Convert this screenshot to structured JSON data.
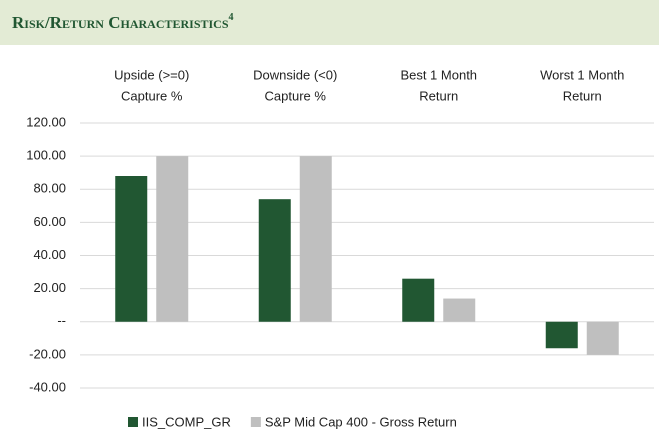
{
  "chart_data": {
    "type": "bar",
    "title": "Risk/Return Characteristics",
    "title_note": "4",
    "categories": [
      [
        "Upside (>=0)",
        "Capture %"
      ],
      [
        "Downside (<0)",
        "Capture %"
      ],
      [
        "Best 1 Month",
        "Return"
      ],
      [
        "Worst 1 Month",
        "Return"
      ]
    ],
    "series": [
      {
        "name": "IIS_COMP_GR",
        "color": "#215732",
        "values": [
          88,
          74,
          26,
          -16
        ]
      },
      {
        "name": "S&P Mid Cap 400 - Gross Return",
        "color": "#bfbfbf",
        "values": [
          100,
          100,
          14,
          -20
        ]
      }
    ],
    "ylim": [
      -40,
      120
    ],
    "yticks": [
      {
        "value": -40,
        "label": "-40.00"
      },
      {
        "value": -20,
        "label": "-20.00"
      },
      {
        "value": 0,
        "label": "--"
      },
      {
        "value": 20,
        "label": "20.00"
      },
      {
        "value": 40,
        "label": "40.00"
      },
      {
        "value": 60,
        "label": "60.00"
      },
      {
        "value": 80,
        "label": "80.00"
      },
      {
        "value": 100,
        "label": "100.00"
      },
      {
        "value": 120,
        "label": "120.00"
      }
    ],
    "grid": true,
    "legend": "bottom"
  }
}
